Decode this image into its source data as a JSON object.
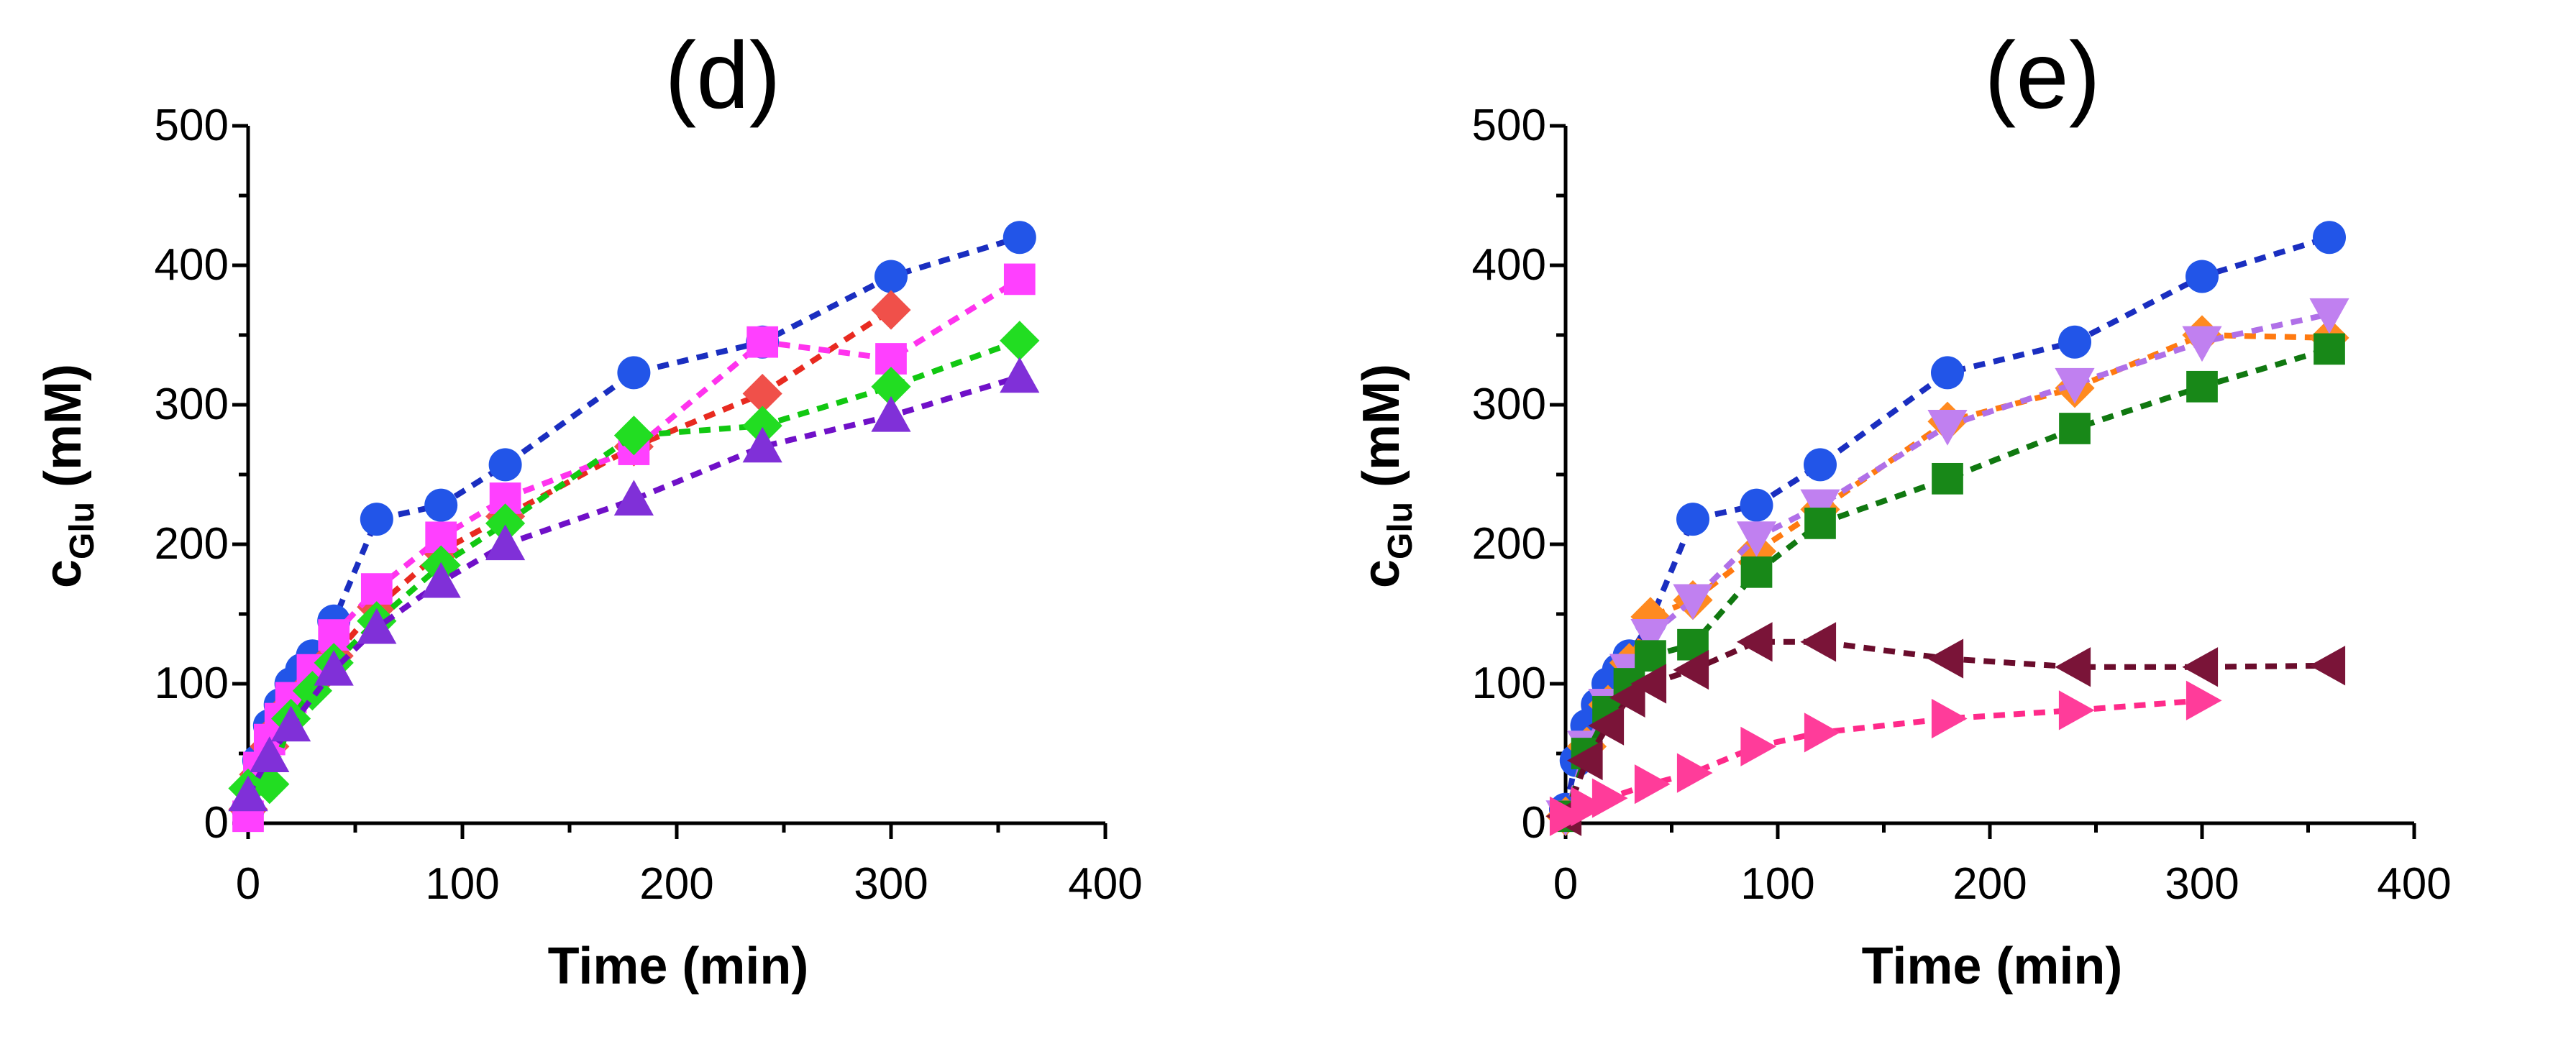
{
  "chart_data": [
    {
      "type": "line",
      "title": "(d)",
      "xlabel": "Time (min)",
      "ylabel": {
        "main": "c",
        "sub": "Glu",
        "units": " (mM)"
      },
      "xlim": [
        0,
        400
      ],
      "ylim": [
        0,
        500
      ],
      "xticks": [
        "0",
        "100",
        "200",
        "300",
        "400"
      ],
      "yticks": [
        "0",
        "100",
        "200",
        "300",
        "400",
        "500"
      ],
      "grid": false,
      "series": [
        {
          "name": "blue circles",
          "marker": "circle",
          "color": "#2255e8",
          "line_color": "#1a2ec0",
          "x": [
            0,
            5,
            10,
            15,
            20,
            25,
            30,
            40,
            60,
            90,
            120,
            180,
            240,
            300,
            360
          ],
          "y": [
            10,
            45,
            70,
            85,
            100,
            110,
            120,
            145,
            218,
            228,
            257,
            323,
            345,
            392,
            420
          ]
        },
        {
          "name": "red diamonds",
          "marker": "diamond",
          "color": "#f0504a",
          "line_color": "#e82a20",
          "x": [
            0,
            5,
            10,
            15,
            20,
            30,
            40,
            60,
            90,
            120,
            180,
            240,
            300
          ],
          "y": [
            10,
            35,
            55,
            70,
            85,
            100,
            120,
            155,
            195,
            220,
            270,
            308,
            368
          ]
        },
        {
          "name": "magenta squares",
          "marker": "square",
          "color": "#ff40ff",
          "line_color": "#ff33ee",
          "x": [
            0,
            5,
            10,
            15,
            20,
            30,
            40,
            60,
            90,
            120,
            180,
            240,
            300,
            360
          ],
          "y": [
            5,
            40,
            60,
            75,
            90,
            110,
            135,
            168,
            205,
            233,
            268,
            345,
            333,
            390
          ]
        },
        {
          "name": "green diamonds",
          "marker": "diamond",
          "color": "#22dd22",
          "line_color": "#11c811",
          "x": [
            0,
            10,
            20,
            30,
            40,
            60,
            90,
            120,
            180,
            240,
            300,
            360
          ],
          "y": [
            25,
            28,
            75,
            95,
            115,
            145,
            185,
            215,
            278,
            285,
            313,
            346
          ]
        },
        {
          "name": "purple triangles",
          "marker": "triangle-up",
          "color": "#8030d8",
          "line_color": "#7010c8",
          "x": [
            0,
            10,
            20,
            40,
            60,
            90,
            120,
            180,
            240,
            300,
            360
          ],
          "y": [
            20,
            48,
            70,
            110,
            140,
            173,
            200,
            232,
            270,
            292,
            320
          ]
        }
      ]
    },
    {
      "type": "line",
      "title": "(e)",
      "xlabel": "Time (min)",
      "ylabel": {
        "main": "c",
        "sub": "Glu",
        "units": " (mM)"
      },
      "xlim": [
        0,
        400
      ],
      "ylim": [
        0,
        500
      ],
      "xticks": [
        "0",
        "100",
        "200",
        "300",
        "400"
      ],
      "yticks": [
        "0",
        "100",
        "200",
        "300",
        "400",
        "500"
      ],
      "grid": false,
      "series": [
        {
          "name": "blue circles",
          "marker": "circle",
          "color": "#2255e8",
          "line_color": "#1a2ec0",
          "x": [
            0,
            5,
            10,
            15,
            20,
            25,
            30,
            40,
            60,
            90,
            120,
            180,
            240,
            300,
            360
          ],
          "y": [
            10,
            45,
            70,
            85,
            100,
            110,
            120,
            145,
            218,
            228,
            257,
            323,
            345,
            392,
            420
          ]
        },
        {
          "name": "orange diamonds",
          "marker": "diamond",
          "color": "#ff8a20",
          "line_color": "#ff7a10",
          "x": [
            0,
            10,
            20,
            30,
            40,
            60,
            90,
            120,
            180,
            240,
            300,
            360
          ],
          "y": [
            5,
            55,
            85,
            115,
            148,
            160,
            195,
            225,
            288,
            312,
            350,
            348
          ]
        },
        {
          "name": "violet down-triangles",
          "marker": "triangle-down",
          "color": "#c080f0",
          "line_color": "#b070e8",
          "x": [
            0,
            10,
            20,
            30,
            40,
            60,
            90,
            120,
            180,
            240,
            300,
            360
          ],
          "y": [
            5,
            55,
            85,
            110,
            135,
            160,
            205,
            228,
            285,
            315,
            345,
            365
          ]
        },
        {
          "name": "dark green squares",
          "marker": "square",
          "color": "#188818",
          "line_color": "#107810",
          "x": [
            0,
            10,
            20,
            30,
            40,
            60,
            90,
            120,
            180,
            240,
            300,
            360
          ],
          "y": [
            5,
            50,
            80,
            100,
            120,
            128,
            180,
            215,
            247,
            283,
            313,
            340
          ]
        },
        {
          "name": "maroon left-triangles",
          "marker": "triangle-left",
          "color": "#7a1438",
          "line_color": "#6a0c2c",
          "x": [
            0,
            10,
            20,
            30,
            40,
            60,
            90,
            120,
            180,
            240,
            300,
            360
          ],
          "y": [
            5,
            45,
            70,
            90,
            100,
            110,
            130,
            130,
            118,
            112,
            112,
            113
          ]
        },
        {
          "name": "pink right-triangles",
          "marker": "triangle-right",
          "color": "#ff3c9a",
          "line_color": "#ff2a8a",
          "x": [
            0,
            10,
            20,
            40,
            60,
            90,
            120,
            180,
            240,
            300
          ],
          "y": [
            5,
            12,
            18,
            28,
            36,
            55,
            65,
            75,
            81,
            88
          ]
        }
      ]
    }
  ]
}
